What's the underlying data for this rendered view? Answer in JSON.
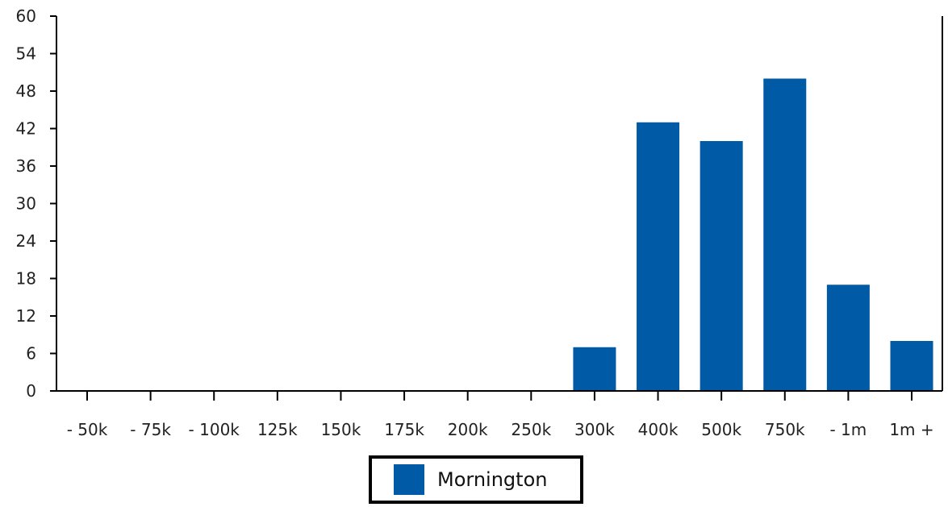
{
  "chart_data": {
    "type": "bar",
    "categories": [
      "- 50k",
      "- 75k",
      "- 100k",
      "125k",
      "150k",
      "175k",
      "200k",
      "250k",
      "300k",
      "400k",
      "500k",
      "750k",
      "- 1m",
      "1m +"
    ],
    "series": [
      {
        "name": "Mornington",
        "values": [
          0,
          0,
          0,
          0,
          0,
          0,
          0,
          0,
          7,
          43,
          40,
          50,
          17,
          8
        ]
      }
    ],
    "y_ticks": [
      "0",
      "6",
      "12",
      "18",
      "24",
      "30",
      "36",
      "42",
      "48",
      "54",
      "60"
    ],
    "ylim": [
      0,
      60
    ],
    "legend_position": "bottom-center",
    "grid": false
  },
  "colors": {
    "bar": "#005aa5",
    "axis": "#000000"
  }
}
